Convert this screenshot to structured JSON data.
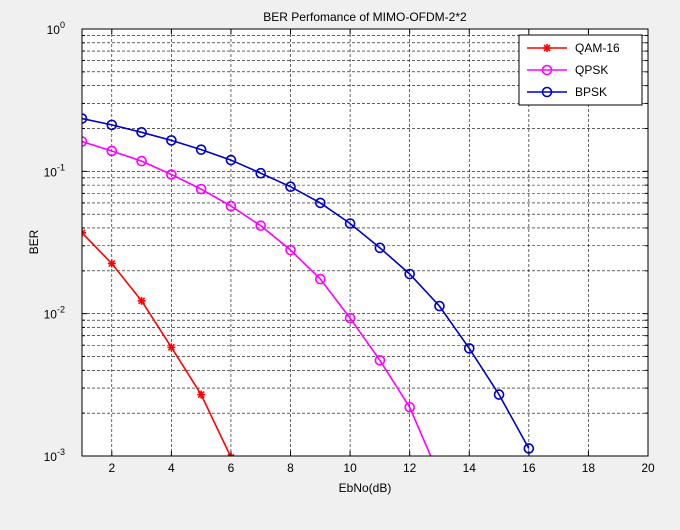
{
  "chart_data": {
    "type": "line",
    "title": "BER Perfomance of MIMO-OFDM-2*2",
    "xlabel": "EbNo(dB)",
    "ylabel": "BER",
    "xlim": [
      1,
      20
    ],
    "ylim": [
      0.001,
      1
    ],
    "yscale": "log",
    "grid": true,
    "legend_position": "top-right",
    "x_ticks": [
      {
        "value": 2,
        "label": "2"
      },
      {
        "value": 4,
        "label": "4"
      },
      {
        "value": 6,
        "label": "6"
      },
      {
        "value": 8,
        "label": "8"
      },
      {
        "value": 10,
        "label": "10"
      },
      {
        "value": 12,
        "label": "12"
      },
      {
        "value": 14,
        "label": "14"
      },
      {
        "value": 16,
        "label": "16"
      },
      {
        "value": 18,
        "label": "18"
      },
      {
        "value": 20,
        "label": "20"
      }
    ],
    "y_ticks": [
      {
        "value": 0.001,
        "base": "10",
        "exp": "-3"
      },
      {
        "value": 0.01,
        "base": "10",
        "exp": "-2"
      },
      {
        "value": 0.1,
        "base": "10",
        "exp": "-1"
      },
      {
        "value": 1,
        "base": "10",
        "exp": "0"
      }
    ],
    "series": [
      {
        "name": "QAM-16",
        "color": "#ff0000",
        "marker": "star",
        "x": [
          1,
          2,
          3,
          4,
          5,
          6
        ],
        "y": [
          0.037,
          0.0225,
          0.0123,
          0.0058,
          0.0027,
          0.00098
        ]
      },
      {
        "name": "QPSK",
        "color": "#ff00ff",
        "marker": "circle",
        "x": [
          1,
          2,
          3,
          4,
          5,
          6,
          7,
          8,
          9,
          10,
          11,
          12,
          13
        ],
        "y": [
          0.162,
          0.139,
          0.118,
          0.095,
          0.075,
          0.057,
          0.0415,
          0.028,
          0.0175,
          0.0093,
          0.0047,
          0.0022,
          0.00072
        ]
      },
      {
        "name": "BPSK",
        "color": "#0000cc",
        "marker": "circle",
        "x": [
          1,
          2,
          3,
          4,
          5,
          6,
          7,
          8,
          9,
          10,
          11,
          12,
          13,
          14,
          15,
          16
        ],
        "y": [
          0.235,
          0.212,
          0.188,
          0.165,
          0.142,
          0.12,
          0.097,
          0.078,
          0.06,
          0.043,
          0.029,
          0.019,
          0.0113,
          0.0057,
          0.0027,
          0.00113
        ]
      }
    ]
  }
}
